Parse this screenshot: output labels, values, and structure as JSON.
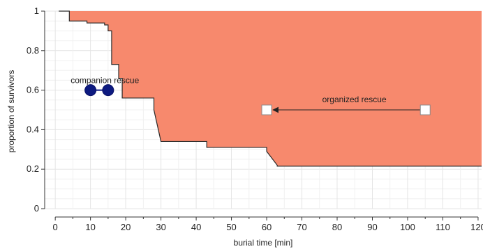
{
  "chart_data": {
    "type": "area",
    "xlabel": "burial time [min]",
    "ylabel": "proportion of survivors",
    "xlim": [
      -3,
      121
    ],
    "ylim": [
      0,
      1.0
    ],
    "x_ticks": [
      0,
      10,
      20,
      30,
      40,
      50,
      60,
      70,
      80,
      90,
      100,
      110,
      120
    ],
    "y_ticks": [
      0,
      0.2,
      0.4,
      0.6,
      0.8,
      1
    ],
    "x_tick_labels": [
      "0",
      "10",
      "20",
      "30",
      "40",
      "50",
      "60",
      "70",
      "80",
      "90",
      "100",
      "110",
      "120"
    ],
    "y_tick_labels": [
      "0",
      "0.2",
      "0.4",
      "0.6",
      "0.8",
      "1"
    ],
    "grid": true,
    "survival_curve": {
      "x": [
        1,
        4,
        4,
        9,
        9,
        14,
        14,
        15,
        15,
        16,
        16,
        18,
        18,
        19,
        19,
        28,
        28,
        30,
        30,
        43,
        43,
        60,
        60,
        63,
        63,
        121
      ],
      "y": [
        1.0,
        1.0,
        0.95,
        0.95,
        0.94,
        0.94,
        0.93,
        0.93,
        0.9,
        0.9,
        0.73,
        0.73,
        0.66,
        0.66,
        0.56,
        0.56,
        0.5,
        0.34,
        0.34,
        0.34,
        0.31,
        0.31,
        0.29,
        0.22,
        0.215,
        0.215
      ]
    },
    "fill_color": "#f7896d",
    "line_color": "#2b2b2b",
    "annotations": [
      {
        "label": "companion rescue",
        "points": [
          {
            "x": 10,
            "y": 0.6
          },
          {
            "x": 15,
            "y": 0.6
          }
        ],
        "marker": "filled-circle",
        "color": "#0d1a80"
      },
      {
        "label": "organized rescue",
        "points": [
          {
            "x": 60,
            "y": 0.5
          },
          {
            "x": 105,
            "y": 0.5
          }
        ],
        "marker": "open-square",
        "arrow_direction": "left",
        "color": "#ffffff"
      }
    ]
  }
}
